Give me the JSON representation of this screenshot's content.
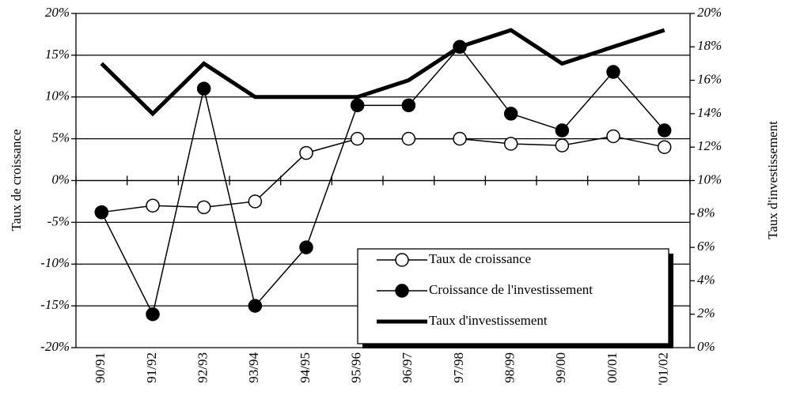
{
  "chart_data": {
    "type": "line",
    "categories": [
      "90/91",
      "91/92",
      "92/93",
      "93/94",
      "94/95",
      "95/96",
      "96/97",
      "97/98",
      "98/99",
      "99/00",
      "00/01",
      "'01/02"
    ],
    "ylabel": "Taux de croissance",
    "y2label": "Taux d'investissement",
    "ylim": [
      -20,
      20
    ],
    "yticks": [
      {
        "value": -20,
        "label": "-20%"
      },
      {
        "value": -15,
        "label": "-15%"
      },
      {
        "value": -10,
        "label": "-10%"
      },
      {
        "value": -5,
        "label": "-5%"
      },
      {
        "value": 0,
        "label": "0%"
      },
      {
        "value": 5,
        "label": "5%"
      },
      {
        "value": 10,
        "label": "10%"
      },
      {
        "value": 15,
        "label": "15%"
      },
      {
        "value": 20,
        "label": "20%"
      }
    ],
    "y2lim": [
      0,
      20
    ],
    "y2ticks": [
      {
        "value": 0,
        "label": "0%"
      },
      {
        "value": 2,
        "label": "2%"
      },
      {
        "value": 4,
        "label": "4%"
      },
      {
        "value": 6,
        "label": "6%"
      },
      {
        "value": 8,
        "label": "8%"
      },
      {
        "value": 10,
        "label": "10%"
      },
      {
        "value": 12,
        "label": "12%"
      },
      {
        "value": 14,
        "label": "14%"
      },
      {
        "value": 16,
        "label": "16%"
      },
      {
        "value": 18,
        "label": "18%"
      },
      {
        "value": 20,
        "label": "20%"
      }
    ],
    "grid": true,
    "legend": "lower right",
    "series": [
      {
        "name": "Taux de croissance",
        "color": "#000000",
        "marker": "open",
        "values": [
          -3.8,
          -3.0,
          -3.2,
          -2.5,
          3.3,
          5.0,
          5.0,
          5.0,
          4.4,
          4.2,
          5.3,
          4.0
        ]
      },
      {
        "name": "Croissance de l'investissement",
        "color": "#000000",
        "marker": "filled",
        "values": [
          -3.8,
          -16,
          11,
          -15,
          -8,
          9,
          9,
          16,
          8,
          6,
          13,
          6
        ]
      },
      {
        "name": "Taux d'investissement",
        "color": "#000000",
        "marker": "none",
        "axis": "y2",
        "values": [
          17,
          14,
          17,
          15,
          15,
          15,
          16,
          18,
          19,
          17,
          18,
          19
        ]
      }
    ]
  }
}
